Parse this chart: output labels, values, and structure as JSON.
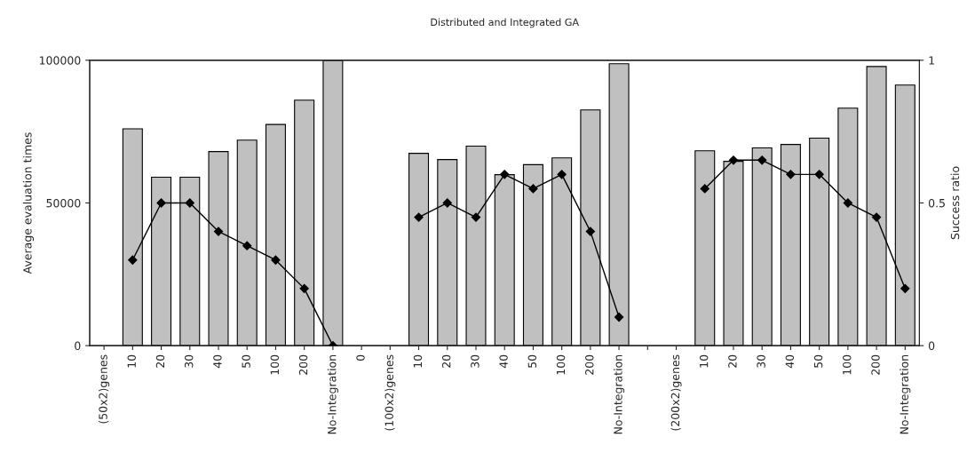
{
  "chart_data": {
    "type": "bar",
    "title": "Distributed and Integrated GA",
    "ylabel": "Average evaluation times",
    "y2label": "Success ratio",
    "categories": [
      "(50x2)genes",
      "10",
      "20",
      "30",
      "40",
      "50",
      "100",
      "200",
      "No-Integration",
      "0",
      "(100x2)genes",
      "10",
      "20",
      "30",
      "40",
      "50",
      "100",
      "200",
      "No-Integration",
      null,
      "(200x2)genes",
      "10",
      "20",
      "30",
      "40",
      "50",
      "100",
      "200",
      "No-Integration"
    ],
    "series": [
      {
        "color": "#c0c0c0",
        "values": [
          null,
          76000,
          59000,
          59000,
          68000,
          72000,
          77500,
          86000,
          100000,
          null,
          null,
          67400,
          65200,
          69900,
          59900,
          63400,
          65800,
          82600,
          98800,
          null,
          null,
          68300,
          64600,
          69300,
          70500,
          72700,
          83200,
          97800,
          91300
        ]
      },
      {
        "type": "line",
        "axis": "y2",
        "color": "#000000",
        "marker": "diamond",
        "values": [
          null,
          0.3,
          0.5,
          0.5,
          0.4,
          0.35,
          0.3,
          0.2,
          0,
          null,
          null,
          0.45,
          0.5,
          0.45,
          0.6,
          0.55,
          0.6,
          0.4,
          0.1,
          null,
          null,
          0.55,
          0.65,
          0.65,
          0.6,
          0.6,
          0.5,
          0.45,
          0.2
        ]
      }
    ],
    "ylim": [
      0,
      100000
    ],
    "yticks": [
      0,
      50000,
      100000
    ],
    "y2lim": [
      0,
      1
    ],
    "y2ticks": [
      0,
      0.5,
      1
    ],
    "grid": false,
    "legend": false
  }
}
